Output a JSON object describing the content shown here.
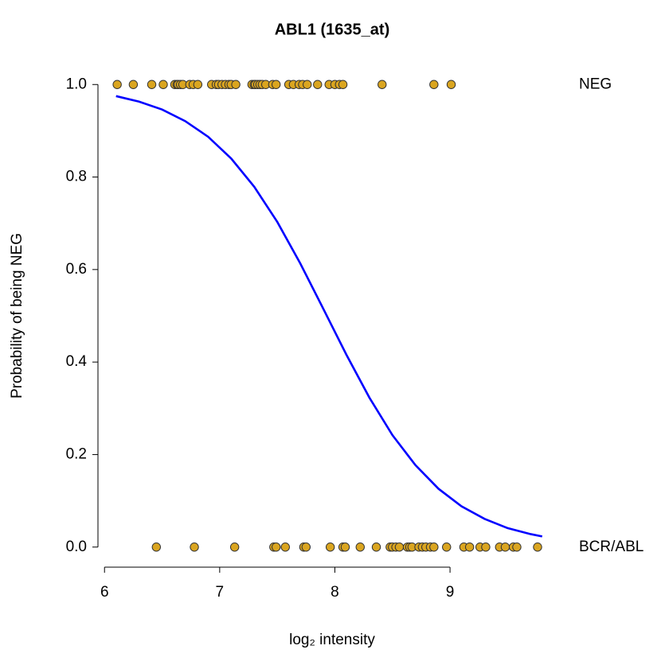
{
  "chart_data": {
    "type": "scatter",
    "title": "ABL1 (1635_at)",
    "xlabel": "log₂ intensity",
    "ylabel": "Probability of being NEG",
    "xlim": [
      5.95,
      9.85
    ],
    "xticks": [
      6,
      7,
      8,
      9
    ],
    "ylim": [
      -0.04,
      1.04
    ],
    "yticks": [
      {
        "value": 0,
        "label": "0.0"
      },
      0.2,
      0.4,
      0.6,
      0.8,
      {
        "value": 1,
        "label": "1.0"
      }
    ],
    "y2lim": [
      -0.04,
      1.04
    ],
    "y2ticks": [
      {
        "value": 0,
        "label": "BCR/ABL"
      },
      {
        "value": 1,
        "label": "NEG"
      }
    ],
    "series": [
      {
        "mode": "points",
        "color": "#DAA520",
        "x": [
          6.11,
          6.25,
          6.41,
          6.51,
          6.61,
          6.63,
          6.64,
          6.66,
          6.68,
          6.74,
          6.77,
          6.81,
          6.93,
          6.97,
          6.99,
          7.02,
          7.05,
          7.08,
          7.1,
          7.14,
          7.28,
          7.3,
          7.31,
          7.33,
          7.35,
          7.37,
          7.4,
          7.46,
          7.49,
          7.6,
          7.64,
          7.69,
          7.72,
          7.76,
          7.85,
          7.95,
          8.0,
          8.04,
          8.07,
          8.41,
          8.86,
          9.01
        ],
        "values": [
          1,
          1,
          1,
          1,
          1,
          1,
          1,
          1,
          1,
          1,
          1,
          1,
          1,
          1,
          1,
          1,
          1,
          1,
          1,
          1,
          1,
          1,
          1,
          1,
          1,
          1,
          1,
          1,
          1,
          1,
          1,
          1,
          1,
          1,
          1,
          1,
          1,
          1,
          1,
          1,
          1,
          1
        ]
      },
      {
        "mode": "points",
        "color": "#DAA520",
        "x": [
          6.45,
          6.78,
          7.13,
          7.47,
          7.49,
          7.57,
          7.73,
          7.75,
          7.96,
          8.07,
          8.09,
          8.22,
          8.36,
          8.48,
          8.5,
          8.53,
          8.56,
          8.63,
          8.65,
          8.67,
          8.73,
          8.76,
          8.79,
          8.83,
          8.86,
          8.97,
          9.12,
          9.17,
          9.26,
          9.31,
          9.43,
          9.48,
          9.55,
          9.58,
          9.76
        ],
        "values": [
          0,
          0,
          0,
          0,
          0,
          0,
          0,
          0,
          0,
          0,
          0,
          0,
          0,
          0,
          0,
          0,
          0,
          0,
          0,
          0,
          0,
          0,
          0,
          0,
          0,
          0,
          0,
          0,
          0,
          0,
          0,
          0,
          0,
          0,
          0
        ]
      },
      {
        "mode": "line",
        "color": "#0000FF",
        "x": [
          6.1,
          6.3,
          6.5,
          6.7,
          6.9,
          7.1,
          7.3,
          7.5,
          7.7,
          7.9,
          8.1,
          8.3,
          8.5,
          8.7,
          8.9,
          9.1,
          9.3,
          9.5,
          9.7,
          9.8
        ],
        "values": [
          0.975,
          0.963,
          0.946,
          0.921,
          0.887,
          0.84,
          0.779,
          0.703,
          0.613,
          0.515,
          0.416,
          0.323,
          0.242,
          0.177,
          0.126,
          0.088,
          0.061,
          0.041,
          0.028,
          0.023
        ]
      }
    ]
  }
}
